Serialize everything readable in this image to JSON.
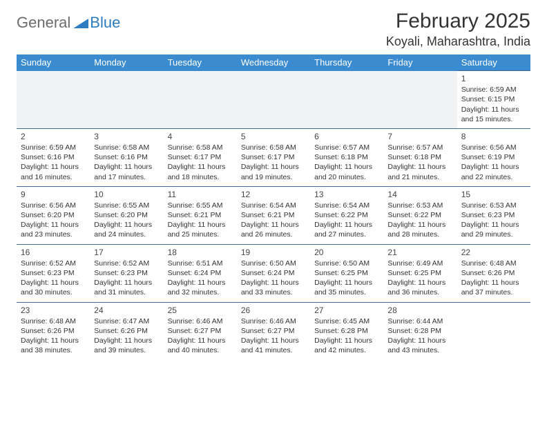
{
  "logo": {
    "text1": "General",
    "text2": "Blue"
  },
  "title": {
    "month": "February 2025",
    "location": "Koyali, Maharashtra, India"
  },
  "style": {
    "header_bg": "#3b8bd0",
    "header_fg": "#ffffff",
    "row_border": "#3b6b9a",
    "first_row_bg": "#f1f2f3",
    "body_font_size": 10.5,
    "daynum_font_size": 12,
    "title_font_size": 30,
    "location_font_size": 18,
    "logo_font_size": 22
  },
  "weekdays": [
    "Sunday",
    "Monday",
    "Tuesday",
    "Wednesday",
    "Thursday",
    "Friday",
    "Saturday"
  ],
  "weeks": [
    [
      null,
      null,
      null,
      null,
      null,
      null,
      {
        "n": "1",
        "sunrise": "Sunrise: 6:59 AM",
        "sunset": "Sunset: 6:15 PM",
        "daylight": "Daylight: 11 hours and 15 minutes."
      }
    ],
    [
      {
        "n": "2",
        "sunrise": "Sunrise: 6:59 AM",
        "sunset": "Sunset: 6:16 PM",
        "daylight": "Daylight: 11 hours and 16 minutes."
      },
      {
        "n": "3",
        "sunrise": "Sunrise: 6:58 AM",
        "sunset": "Sunset: 6:16 PM",
        "daylight": "Daylight: 11 hours and 17 minutes."
      },
      {
        "n": "4",
        "sunrise": "Sunrise: 6:58 AM",
        "sunset": "Sunset: 6:17 PM",
        "daylight": "Daylight: 11 hours and 18 minutes."
      },
      {
        "n": "5",
        "sunrise": "Sunrise: 6:58 AM",
        "sunset": "Sunset: 6:17 PM",
        "daylight": "Daylight: 11 hours and 19 minutes."
      },
      {
        "n": "6",
        "sunrise": "Sunrise: 6:57 AM",
        "sunset": "Sunset: 6:18 PM",
        "daylight": "Daylight: 11 hours and 20 minutes."
      },
      {
        "n": "7",
        "sunrise": "Sunrise: 6:57 AM",
        "sunset": "Sunset: 6:18 PM",
        "daylight": "Daylight: 11 hours and 21 minutes."
      },
      {
        "n": "8",
        "sunrise": "Sunrise: 6:56 AM",
        "sunset": "Sunset: 6:19 PM",
        "daylight": "Daylight: 11 hours and 22 minutes."
      }
    ],
    [
      {
        "n": "9",
        "sunrise": "Sunrise: 6:56 AM",
        "sunset": "Sunset: 6:20 PM",
        "daylight": "Daylight: 11 hours and 23 minutes."
      },
      {
        "n": "10",
        "sunrise": "Sunrise: 6:55 AM",
        "sunset": "Sunset: 6:20 PM",
        "daylight": "Daylight: 11 hours and 24 minutes."
      },
      {
        "n": "11",
        "sunrise": "Sunrise: 6:55 AM",
        "sunset": "Sunset: 6:21 PM",
        "daylight": "Daylight: 11 hours and 25 minutes."
      },
      {
        "n": "12",
        "sunrise": "Sunrise: 6:54 AM",
        "sunset": "Sunset: 6:21 PM",
        "daylight": "Daylight: 11 hours and 26 minutes."
      },
      {
        "n": "13",
        "sunrise": "Sunrise: 6:54 AM",
        "sunset": "Sunset: 6:22 PM",
        "daylight": "Daylight: 11 hours and 27 minutes."
      },
      {
        "n": "14",
        "sunrise": "Sunrise: 6:53 AM",
        "sunset": "Sunset: 6:22 PM",
        "daylight": "Daylight: 11 hours and 28 minutes."
      },
      {
        "n": "15",
        "sunrise": "Sunrise: 6:53 AM",
        "sunset": "Sunset: 6:23 PM",
        "daylight": "Daylight: 11 hours and 29 minutes."
      }
    ],
    [
      {
        "n": "16",
        "sunrise": "Sunrise: 6:52 AM",
        "sunset": "Sunset: 6:23 PM",
        "daylight": "Daylight: 11 hours and 30 minutes."
      },
      {
        "n": "17",
        "sunrise": "Sunrise: 6:52 AM",
        "sunset": "Sunset: 6:23 PM",
        "daylight": "Daylight: 11 hours and 31 minutes."
      },
      {
        "n": "18",
        "sunrise": "Sunrise: 6:51 AM",
        "sunset": "Sunset: 6:24 PM",
        "daylight": "Daylight: 11 hours and 32 minutes."
      },
      {
        "n": "19",
        "sunrise": "Sunrise: 6:50 AM",
        "sunset": "Sunset: 6:24 PM",
        "daylight": "Daylight: 11 hours and 33 minutes."
      },
      {
        "n": "20",
        "sunrise": "Sunrise: 6:50 AM",
        "sunset": "Sunset: 6:25 PM",
        "daylight": "Daylight: 11 hours and 35 minutes."
      },
      {
        "n": "21",
        "sunrise": "Sunrise: 6:49 AM",
        "sunset": "Sunset: 6:25 PM",
        "daylight": "Daylight: 11 hours and 36 minutes."
      },
      {
        "n": "22",
        "sunrise": "Sunrise: 6:48 AM",
        "sunset": "Sunset: 6:26 PM",
        "daylight": "Daylight: 11 hours and 37 minutes."
      }
    ],
    [
      {
        "n": "23",
        "sunrise": "Sunrise: 6:48 AM",
        "sunset": "Sunset: 6:26 PM",
        "daylight": "Daylight: 11 hours and 38 minutes."
      },
      {
        "n": "24",
        "sunrise": "Sunrise: 6:47 AM",
        "sunset": "Sunset: 6:26 PM",
        "daylight": "Daylight: 11 hours and 39 minutes."
      },
      {
        "n": "25",
        "sunrise": "Sunrise: 6:46 AM",
        "sunset": "Sunset: 6:27 PM",
        "daylight": "Daylight: 11 hours and 40 minutes."
      },
      {
        "n": "26",
        "sunrise": "Sunrise: 6:46 AM",
        "sunset": "Sunset: 6:27 PM",
        "daylight": "Daylight: 11 hours and 41 minutes."
      },
      {
        "n": "27",
        "sunrise": "Sunrise: 6:45 AM",
        "sunset": "Sunset: 6:28 PM",
        "daylight": "Daylight: 11 hours and 42 minutes."
      },
      {
        "n": "28",
        "sunrise": "Sunrise: 6:44 AM",
        "sunset": "Sunset: 6:28 PM",
        "daylight": "Daylight: 11 hours and 43 minutes."
      },
      null
    ]
  ]
}
